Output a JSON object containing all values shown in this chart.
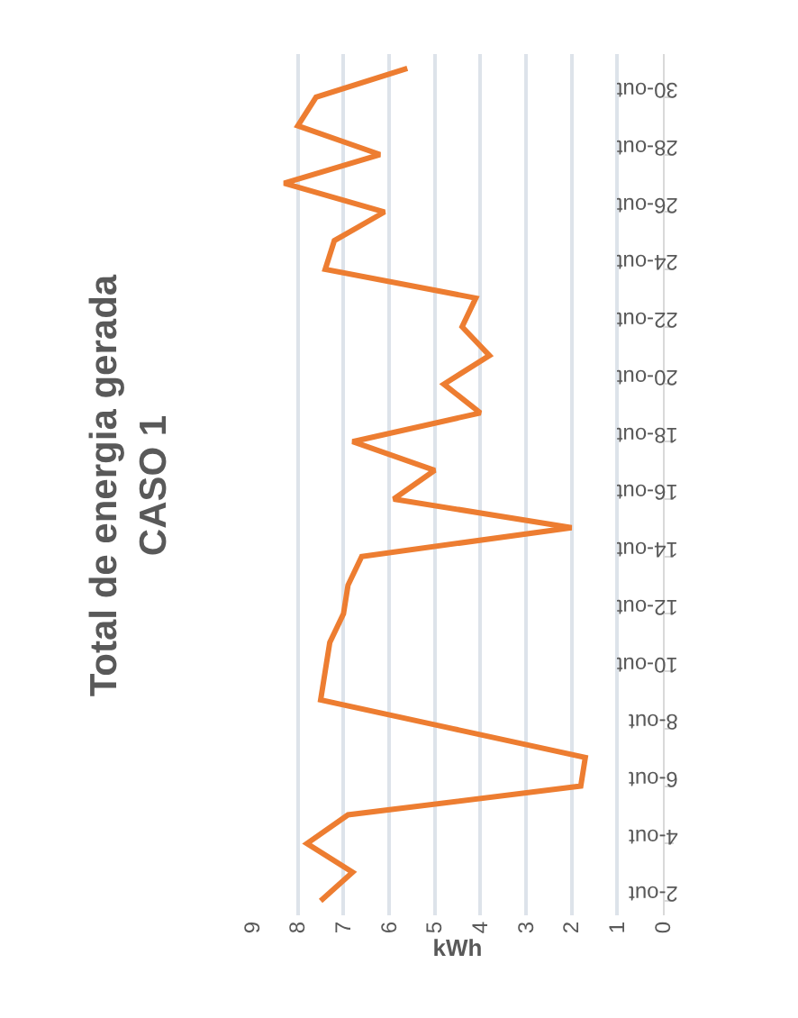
{
  "chart_data": {
    "type": "line",
    "orientation": "horizontal",
    "title": "Total de energia gerada\nCASO 1",
    "xlabel": "kWh",
    "categories": [
      null,
      "30-out",
      null,
      "28-out",
      null,
      "26-out",
      null,
      "24-out",
      null,
      "22-out",
      null,
      "20-out",
      null,
      "18-out",
      null,
      "16-out",
      null,
      "14-out",
      null,
      "12-out",
      null,
      "10-out",
      null,
      "8-out",
      null,
      "6-out",
      null,
      "4-out",
      null,
      "2-out"
    ],
    "series": [
      {
        "color": "#ed7d31",
        "values": [
          5.6,
          7.6,
          8.0,
          6.2,
          8.3,
          6.1,
          7.2,
          7.4,
          4.1,
          4.4,
          3.8,
          4.8,
          4.0,
          6.8,
          5.0,
          5.9,
          2.0,
          6.6,
          6.9,
          7.0,
          7.3,
          7.4,
          7.5,
          4.6,
          1.7,
          1.8,
          6.9,
          7.8,
          6.8,
          7.5
        ]
      }
    ],
    "xlim": [
      9,
      0
    ],
    "xticks": [
      0,
      1,
      2,
      3,
      4,
      5,
      6,
      7,
      8,
      9
    ],
    "grid": "x",
    "marker": "none",
    "line_style": "solid"
  }
}
